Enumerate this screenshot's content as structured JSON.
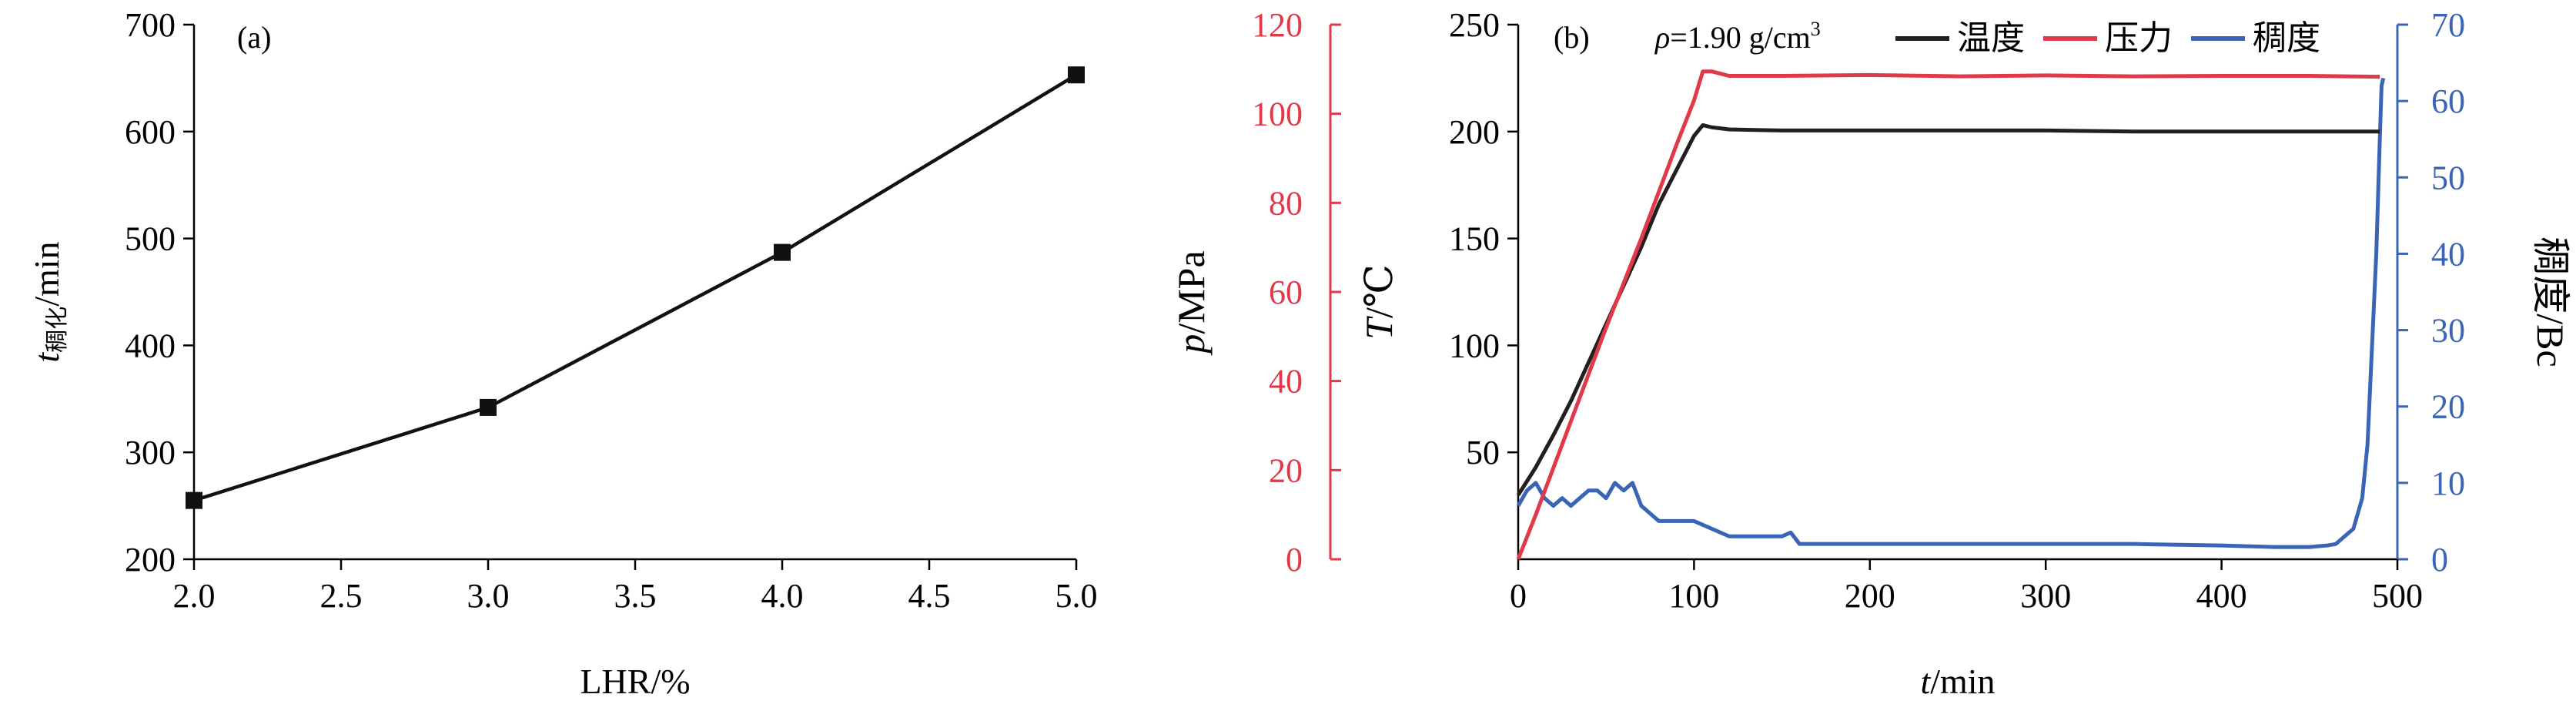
{
  "colors": {
    "axis": "#000000",
    "temperature": "#231f20",
    "pressure": "#e03a4a",
    "consistency": "#3a64b6"
  },
  "chart_data": [
    {
      "panel_label": "(a)",
      "type": "line",
      "xlabel": "LHR/%",
      "ylabel": {
        "main": "t",
        "sub": "稠化",
        "unit": "/min"
      },
      "xlim": [
        2.0,
        5.0
      ],
      "ylim": [
        200,
        700
      ],
      "xticks": [
        "2.0",
        "2.5",
        "3.0",
        "3.5",
        "4.0",
        "4.5",
        "5.0"
      ],
      "yticks": [
        "200",
        "300",
        "400",
        "500",
        "600",
        "700"
      ],
      "grid": false,
      "x": [
        2.0,
        3.0,
        4.0,
        5.0
      ],
      "y": [
        255,
        342,
        487,
        653
      ]
    },
    {
      "panel_label": "(b)",
      "type": "line",
      "annotation": {
        "rho_symbol": "ρ",
        "rho_text": "=1.90 g/cm",
        "rho_sup": "3"
      },
      "xlabel": {
        "main": "t",
        "unit": "/min"
      },
      "xlim": [
        0,
        500
      ],
      "xticks": [
        "0",
        "100",
        "200",
        "300",
        "400",
        "500"
      ],
      "y_pressure": {
        "label_main": "p",
        "label_unit": "/MPa",
        "lim": [
          0,
          120
        ],
        "ticks": [
          "0",
          "20",
          "40",
          "60",
          "80",
          "100",
          "120"
        ]
      },
      "y_temperature": {
        "label_main": "T",
        "label_unit": "/℃",
        "lim": [
          0,
          250
        ],
        "ticks": [
          "50",
          "100",
          "150",
          "200",
          "250"
        ]
      },
      "y_consistency": {
        "label": "稠度/Bc",
        "lim": [
          0,
          70
        ],
        "ticks": [
          "0",
          "10",
          "20",
          "30",
          "40",
          "50",
          "60",
          "70"
        ]
      },
      "legend": {
        "placement": "top",
        "entries": [
          "温度",
          "压力",
          "稠度"
        ]
      },
      "grid": false,
      "series": [
        {
          "name": "温度",
          "axis": "temperature",
          "x": [
            0,
            10,
            20,
            30,
            40,
            50,
            60,
            70,
            80,
            90,
            100,
            105,
            110,
            120,
            150,
            200,
            250,
            300,
            350,
            400,
            450,
            490
          ],
          "y": [
            30,
            43,
            58,
            74,
            92,
            110,
            128,
            146,
            166,
            182,
            198,
            203,
            202,
            201,
            200.5,
            200.5,
            200.5,
            200.5,
            200,
            200,
            200,
            200
          ]
        },
        {
          "name": "压力",
          "axis": "pressure",
          "x": [
            0,
            10,
            20,
            30,
            40,
            50,
            60,
            70,
            80,
            90,
            100,
            105,
            110,
            120,
            150,
            200,
            250,
            300,
            350,
            400,
            450,
            490
          ],
          "y": [
            0,
            10,
            20.5,
            31,
            41.5,
            52,
            62,
            72,
            82.5,
            93,
            103,
            109.5,
            109.5,
            108.5,
            108.5,
            108.7,
            108.4,
            108.6,
            108.4,
            108.5,
            108.5,
            108.3
          ]
        },
        {
          "name": "稠度",
          "axis": "consistency",
          "x": [
            0,
            5,
            10,
            15,
            20,
            25,
            30,
            35,
            40,
            45,
            50,
            55,
            60,
            65,
            70,
            75,
            80,
            90,
            100,
            110,
            120,
            130,
            140,
            150,
            155,
            160,
            170,
            200,
            250,
            300,
            350,
            400,
            430,
            450,
            460,
            465,
            470,
            475,
            480,
            483,
            486,
            488,
            490,
            491,
            492
          ],
          "y": [
            7,
            9,
            10,
            8,
            7,
            8,
            7,
            8,
            9,
            9,
            8,
            10,
            9,
            10,
            7,
            6,
            5,
            5,
            5,
            4,
            3,
            3,
            3,
            3,
            3.5,
            2,
            2,
            2,
            2,
            2,
            2,
            1.8,
            1.6,
            1.6,
            1.8,
            2,
            3,
            4,
            8,
            15,
            30,
            40,
            55,
            62,
            63
          ]
        }
      ]
    }
  ]
}
